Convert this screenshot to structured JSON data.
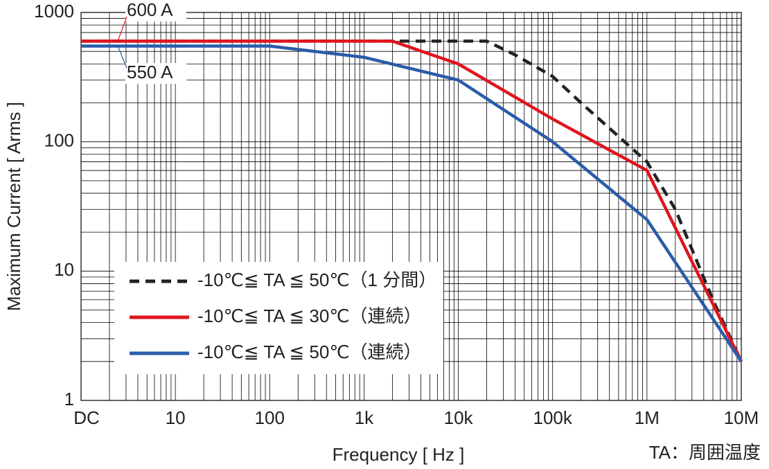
{
  "chart_data": {
    "type": "line",
    "x_label": "Frequency [ Hz ]",
    "y_label": "Maximum Current [ Arms ]",
    "x_log": true,
    "y_log": true,
    "grid": true,
    "xlim": [
      1,
      10000000
    ],
    "xticks": [
      {
        "value": 1,
        "label": "DC"
      },
      10,
      100,
      {
        "value": 1000,
        "label": "1k"
      },
      {
        "value": 10000,
        "label": "10k"
      },
      {
        "value": 100000,
        "label": "100k"
      },
      {
        "value": 1000000,
        "label": "1M"
      },
      {
        "value": 10000000,
        "label": "10M"
      }
    ],
    "ylim": [
      1,
      1000
    ],
    "yticks": [
      1,
      10,
      100,
      1000
    ],
    "legend": "lower left",
    "series": [
      {
        "name": "-10℃≦ TA ≦ 50℃（1 分間）",
        "color": "#222222",
        "dashed": true,
        "x": [
          1,
          20000,
          40000,
          100000,
          200000,
          1000000,
          2000000,
          5000000,
          10000000
        ],
        "values": [
          600,
          600,
          470,
          320,
          200,
          70,
          30,
          6,
          2
        ]
      },
      {
        "name": "-10℃≦ TA ≦ 30℃（連続）",
        "color": "#e0141e",
        "dashed": false,
        "x": [
          1,
          2000,
          10000,
          100000,
          1000000,
          10000000
        ],
        "values": [
          600,
          600,
          400,
          150,
          60,
          2
        ]
      },
      {
        "name": "-10℃≦ TA ≦ 50℃（連続）",
        "color": "#2a5ca8",
        "dashed": false,
        "x": [
          1,
          100,
          1000,
          10000,
          100000,
          1000000,
          10000000
        ],
        "values": [
          550,
          550,
          450,
          300,
          100,
          25,
          2
        ]
      }
    ],
    "annotations": [
      {
        "text": "600 A",
        "color": "#e0141e"
      },
      {
        "text": "550 A",
        "color": "#2a5ca8"
      }
    ],
    "note": "TA：周囲温度"
  }
}
